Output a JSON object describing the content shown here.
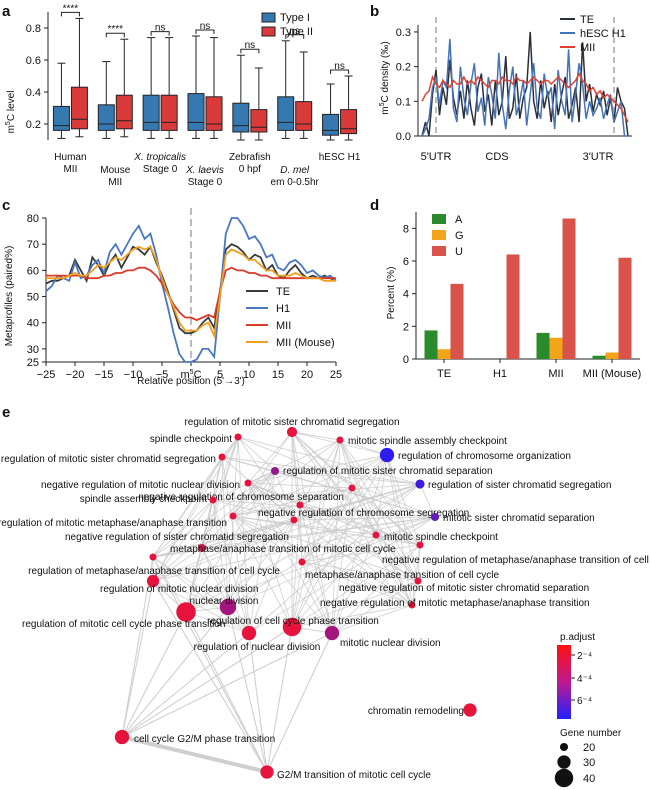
{
  "panels": {
    "a": "a",
    "b": "b",
    "c": "c",
    "d": "d",
    "e": "e"
  },
  "chart_data": [
    {
      "type": "box",
      "panel": "a",
      "ylabel": "m5C level",
      "ylim": [
        0.1,
        0.9
      ],
      "yticks": [
        "0.2",
        "0.4",
        "0.6",
        "0.8"
      ],
      "legend": [
        "Type I",
        "Type II"
      ],
      "colors": {
        "Type I": "#3679b1",
        "Type II": "#d93b3b"
      },
      "groups": [
        {
          "label": [
            "Human",
            "MII"
          ],
          "sig": "****",
          "type1": {
            "low": 0.11,
            "q1": 0.16,
            "med": 0.19,
            "q3": 0.31,
            "high": 0.58
          },
          "type2": {
            "low": 0.12,
            "q1": 0.17,
            "med": 0.23,
            "q3": 0.43,
            "high": 0.86
          }
        },
        {
          "label": [
            "Mouse",
            "MII"
          ],
          "sig": "****",
          "type1": {
            "low": 0.11,
            "q1": 0.16,
            "med": 0.2,
            "q3": 0.32,
            "high": 0.59
          },
          "type2": {
            "low": 0.12,
            "q1": 0.17,
            "med": 0.22,
            "q3": 0.38,
            "high": 0.73
          }
        },
        {
          "label": [
            "X. tropicalis",
            "Stage 0"
          ],
          "sig": "ns",
          "type1": {
            "low": 0.11,
            "q1": 0.16,
            "med": 0.21,
            "q3": 0.38,
            "high": 0.74
          },
          "type2": {
            "low": 0.11,
            "q1": 0.16,
            "med": 0.21,
            "q3": 0.38,
            "high": 0.74
          }
        },
        {
          "label": [
            "X. laevis",
            "Stage 0"
          ],
          "sig": "ns",
          "type1": {
            "low": 0.11,
            "q1": 0.16,
            "med": 0.21,
            "q3": 0.39,
            "high": 0.75
          },
          "type2": {
            "low": 0.11,
            "q1": 0.16,
            "med": 0.2,
            "q3": 0.37,
            "high": 0.74
          }
        },
        {
          "label": [
            "Zebrafish",
            "0 hpf"
          ],
          "sig": "ns",
          "type1": {
            "low": 0.1,
            "q1": 0.15,
            "med": 0.19,
            "q3": 0.33,
            "high": 0.63
          },
          "type2": {
            "low": 0.1,
            "q1": 0.15,
            "med": 0.18,
            "q3": 0.29,
            "high": 0.55
          }
        },
        {
          "label": [
            "D. mel",
            "em 0-0.5hr"
          ],
          "sig": "ns",
          "type1": {
            "low": 0.11,
            "q1": 0.16,
            "med": 0.21,
            "q3": 0.37,
            "high": 0.72
          },
          "type2": {
            "low": 0.11,
            "q1": 0.16,
            "med": 0.2,
            "q3": 0.34,
            "high": 0.65
          }
        },
        {
          "label": [
            "hESC H1",
            ""
          ],
          "sig": "ns",
          "type1": {
            "low": 0.1,
            "q1": 0.13,
            "med": 0.16,
            "q3": 0.26,
            "high": 0.45
          },
          "type2": {
            "low": 0.1,
            "q1": 0.14,
            "med": 0.17,
            "q3": 0.29,
            "high": 0.5
          }
        }
      ]
    },
    {
      "type": "line",
      "panel": "b",
      "ylabel": "m5C density (‰)",
      "ylim": [
        0,
        0.32
      ],
      "yticks": [
        "0.0",
        "0.1",
        "0.2",
        "0.3"
      ],
      "region_labels": [
        "5'UTR",
        "CDS",
        "3'UTR"
      ],
      "bins": 60,
      "series": [
        {
          "name": "TE",
          "color": "#2b2f3a",
          "values": [
            0.0,
            0.04,
            0.0,
            0.12,
            0.19,
            0.06,
            0.14,
            0.09,
            0.22,
            0.11,
            0.06,
            0.13,
            0.05,
            0.16,
            0.08,
            0.03,
            0.14,
            0.18,
            0.07,
            0.12,
            0.03,
            0.16,
            0.06,
            0.1,
            0.23,
            0.05,
            0.08,
            0.18,
            0.05,
            0.11,
            0.14,
            0.3,
            0.1,
            0.05,
            0.16,
            0.08,
            0.13,
            0.04,
            0.15,
            0.06,
            0.12,
            0.17,
            0.05,
            0.09,
            0.14,
            0.04,
            0.27,
            0.1,
            0.15,
            0.07,
            0.12,
            0.09,
            0.13,
            0.06,
            0.11,
            0.04,
            0.14,
            0.1,
            0.08,
            0.0
          ]
        },
        {
          "name": "hESC H1",
          "color": "#4573b8",
          "values": [
            0.0,
            0.02,
            0.05,
            0.14,
            0.17,
            0.09,
            0.16,
            0.14,
            0.28,
            0.08,
            0.04,
            0.2,
            0.11,
            0.06,
            0.15,
            0.21,
            0.07,
            0.11,
            0.03,
            0.17,
            0.12,
            0.05,
            0.24,
            0.09,
            0.02,
            0.13,
            0.2,
            0.06,
            0.1,
            0.16,
            0.03,
            0.12,
            0.21,
            0.08,
            0.05,
            0.18,
            0.11,
            0.14,
            0.02,
            0.19,
            0.1,
            0.06,
            0.25,
            0.04,
            0.12,
            0.21,
            0.15,
            0.05,
            0.1,
            0.06,
            0.08,
            0.11,
            0.05,
            0.09,
            0.12,
            0.04,
            0.07,
            0.1,
            0.0,
            0.0
          ]
        },
        {
          "name": "MII",
          "color": "#e2402f",
          "values": [
            0.1,
            0.12,
            0.13,
            0.17,
            0.15,
            0.14,
            0.16,
            0.15,
            0.14,
            0.16,
            0.15,
            0.15,
            0.17,
            0.15,
            0.16,
            0.15,
            0.17,
            0.16,
            0.15,
            0.14,
            0.16,
            0.16,
            0.15,
            0.17,
            0.16,
            0.16,
            0.15,
            0.17,
            0.16,
            0.16,
            0.15,
            0.16,
            0.17,
            0.16,
            0.15,
            0.16,
            0.16,
            0.15,
            0.16,
            0.17,
            0.16,
            0.15,
            0.14,
            0.15,
            0.16,
            0.18,
            0.16,
            0.15,
            0.13,
            0.14,
            0.12,
            0.13,
            0.11,
            0.12,
            0.11,
            0.1,
            0.09,
            0.08,
            0.06,
            0.04
          ]
        }
      ]
    },
    {
      "type": "line",
      "panel": "c",
      "xlabel": "Relative position (5'→3')",
      "ylabel": "Metaprofiles (paired%)",
      "center_label": "m5C",
      "xlim": [
        -25,
        25
      ],
      "ylim": [
        25,
        80
      ],
      "xticks": [
        "−25",
        "−20",
        "−15",
        "−10",
        "−5",
        "m5C",
        "5",
        "10",
        "15",
        "20",
        "25"
      ],
      "yticks": [
        "25",
        "30",
        "40",
        "50",
        "60",
        "70",
        "80"
      ],
      "x": [
        -25,
        -24,
        -23,
        -22,
        -21,
        -20,
        -19,
        -18,
        -17,
        -16,
        -15,
        -14,
        -13,
        -12,
        -11,
        -10,
        -9,
        -8,
        -7,
        -6,
        -5,
        -4,
        -3,
        -2,
        -1,
        0,
        1,
        2,
        3,
        4,
        5,
        6,
        7,
        8,
        9,
        10,
        11,
        12,
        13,
        14,
        15,
        16,
        17,
        18,
        19,
        20,
        21,
        22,
        23,
        24,
        25
      ],
      "series": [
        {
          "name": "TE",
          "color": "#3a3a3a",
          "values": [
            55,
            56,
            56,
            57,
            58,
            64,
            60,
            56,
            65,
            62,
            58,
            63,
            66,
            61,
            65,
            69,
            68,
            66,
            69,
            63,
            58,
            52,
            45,
            38,
            36,
            36,
            37,
            40,
            42,
            38,
            52,
            68,
            70,
            69,
            67,
            64,
            66,
            65,
            60,
            62,
            58,
            57,
            60,
            62,
            59,
            57,
            58,
            57,
            58,
            57,
            56
          ]
        },
        {
          "name": "H1",
          "color": "#4a76c2",
          "values": [
            52,
            54,
            58,
            57,
            56,
            63,
            57,
            58,
            62,
            64,
            59,
            67,
            70,
            66,
            70,
            74,
            77,
            72,
            74,
            66,
            55,
            46,
            36,
            28,
            25,
            25,
            26,
            30,
            30,
            27,
            50,
            74,
            80,
            80,
            77,
            72,
            73,
            70,
            65,
            66,
            61,
            60,
            63,
            64,
            62,
            59,
            60,
            58,
            57,
            58,
            56
          ]
        },
        {
          "name": "MII",
          "color": "#d93a2a",
          "values": [
            58,
            58,
            58,
            58,
            58,
            58,
            58,
            57,
            57,
            57,
            58,
            58,
            59,
            59,
            60,
            60,
            61,
            61,
            60,
            58,
            55,
            51,
            47,
            44,
            42,
            42,
            41,
            42,
            43,
            42,
            52,
            60,
            61,
            60,
            60,
            59,
            59,
            58,
            58,
            57,
            57,
            57,
            57,
            57,
            57,
            57,
            57,
            57,
            57,
            57,
            57
          ]
        },
        {
          "name": "MII (Mouse)",
          "color": "#f0a020",
          "values": [
            57,
            57,
            57,
            57,
            58,
            59,
            58,
            58,
            60,
            62,
            61,
            63,
            65,
            64,
            66,
            68,
            69,
            68,
            69,
            64,
            57,
            51,
            46,
            40,
            37,
            37,
            37,
            39,
            40,
            35,
            50,
            66,
            68,
            67,
            66,
            64,
            64,
            62,
            60,
            60,
            58,
            58,
            58,
            59,
            58,
            57,
            57,
            57,
            56,
            56,
            56
          ]
        }
      ]
    },
    {
      "type": "bar",
      "panel": "d",
      "ylabel": "Percent (%)",
      "ylim": [
        0,
        9
      ],
      "yticks": [
        "0",
        "2",
        "4",
        "6",
        "8"
      ],
      "categories": [
        "TE",
        "H1",
        "MII",
        "MII (Mouse)"
      ],
      "series": [
        {
          "name": "A",
          "color": "#2b8a2b",
          "values": [
            1.75,
            0,
            1.6,
            0.2
          ]
        },
        {
          "name": "G",
          "color": "#f2a51a",
          "values": [
            0.6,
            0,
            1.3,
            0.4
          ]
        },
        {
          "name": "U",
          "color": "#d9534a",
          "values": [
            4.6,
            6.4,
            8.6,
            6.2
          ]
        }
      ]
    },
    {
      "type": "network",
      "panel": "e",
      "legend_title": "p.adjust",
      "colorbar_labels": [
        "2⁻⁴",
        "4⁻⁴",
        "6⁻⁴"
      ],
      "size_title": "Gene number",
      "size_labels": [
        "20",
        "30",
        "40"
      ],
      "nodes": [
        {
          "name": "regulation of mitotic sister chromatid segregation",
          "padj": 2.0,
          "genes": 24
        },
        {
          "name": "spindle checkpoint",
          "padj": 2.0,
          "genes": 18
        },
        {
          "name": "mitotic spindle assembly checkpoint",
          "padj": 2.0,
          "genes": 18
        },
        {
          "name": "negative regulation of mitotic sister chromatid segregation",
          "padj": 2.0,
          "genes": 18
        },
        {
          "name": "regulation of chromosome organization",
          "padj": 7.5,
          "genes": 32
        },
        {
          "name": "regulation of mitotic sister chromatid separation",
          "padj": 4.5,
          "genes": 20
        },
        {
          "name": "negative regulation of mitotic nuclear division",
          "padj": 2.0,
          "genes": 18
        },
        {
          "name": "regulation of sister chromatid segregation",
          "padj": 7.0,
          "genes": 22
        },
        {
          "name": "negative regulation of chromosome separation",
          "padj": 2.0,
          "genes": 18
        },
        {
          "name": "spindle assembly checkpoint",
          "padj": 2.0,
          "genes": 18
        },
        {
          "name": "negative regulation of chromosome segregation",
          "padj": 2.0,
          "genes": 18
        },
        {
          "name": "mitotic sister chromatid separation",
          "padj": 6.0,
          "genes": 20
        },
        {
          "name": "regulation of mitotic metaphase/anaphase transition",
          "padj": 2.0,
          "genes": 18
        },
        {
          "name": "negative regulation of sister chromatid segregation",
          "padj": 2.0,
          "genes": 18
        },
        {
          "name": "mitotic spindle checkpoint",
          "padj": 2.0,
          "genes": 18
        },
        {
          "name": "metaphase/anaphase transition of mitotic cell cycle",
          "padj": 2.5,
          "genes": 20
        },
        {
          "name": "negative regulation of metaphase/anaphase transition of cell cycle",
          "padj": 2.0,
          "genes": 18
        },
        {
          "name": "regulation of metaphase/anaphase transition of cell cycle",
          "padj": 2.0,
          "genes": 18
        },
        {
          "name": "metaphase/anaphase transition of cell cycle",
          "padj": 2.0,
          "genes": 18
        },
        {
          "name": "regulation of mitotic nuclear division",
          "padj": 2.0,
          "genes": 28
        },
        {
          "name": "negative regulation of mitotic sister chromatid separation",
          "padj": 2.0,
          "genes": 18
        },
        {
          "name": "nuclear division",
          "padj": 4.0,
          "genes": 36
        },
        {
          "name": "negative regulation of mitotic metaphase/anaphase transition",
          "padj": 2.0,
          "genes": 18
        },
        {
          "name": "regulation of mitotic cell cycle phase transition",
          "padj": 2.0,
          "genes": 42
        },
        {
          "name": "regulation of cell cycle phase transition",
          "padj": 2.0,
          "genes": 40
        },
        {
          "name": "regulation of nuclear division",
          "padj": 2.0,
          "genes": 32
        },
        {
          "name": "mitotic nuclear division",
          "padj": 4.0,
          "genes": 32
        },
        {
          "name": "chromatin remodeling",
          "padj": 2.0,
          "genes": 30
        },
        {
          "name": "cell cycle G2/M phase transition",
          "padj": 2.0,
          "genes": 32
        },
        {
          "name": "G2/M transition of mitotic cell cycle",
          "padj": 2.0,
          "genes": 30
        }
      ]
    }
  ]
}
